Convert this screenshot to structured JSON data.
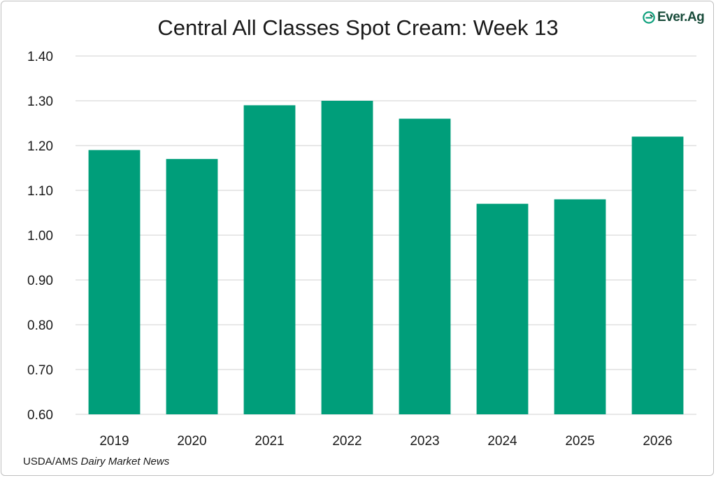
{
  "title": "Central All Classes Spot Cream: Week 13",
  "logo": {
    "text": "Ever.Ag",
    "icon": "ever-ag-logo-icon",
    "color": "#184b3a"
  },
  "source": {
    "prefix": "USDA/AMS",
    "publication": "Dairy Market News"
  },
  "chart_data": {
    "type": "bar",
    "title": "Central All Classes Spot Cream: Week 13",
    "xlabel": "",
    "ylabel": "",
    "categories": [
      "2019",
      "2020",
      "2021",
      "2022",
      "2023",
      "2024",
      "2025",
      "2026"
    ],
    "values": [
      1.19,
      1.17,
      1.29,
      1.3,
      1.26,
      1.07,
      1.08,
      1.22
    ],
    "ylim": [
      0.6,
      1.4
    ],
    "yticks": [
      "0.60",
      "0.70",
      "0.80",
      "0.90",
      "1.00",
      "1.10",
      "1.20",
      "1.30",
      "1.40"
    ],
    "grid": true,
    "legend": "none",
    "bar_color": "#009e7a",
    "grid_color": "#d9d9d9"
  }
}
